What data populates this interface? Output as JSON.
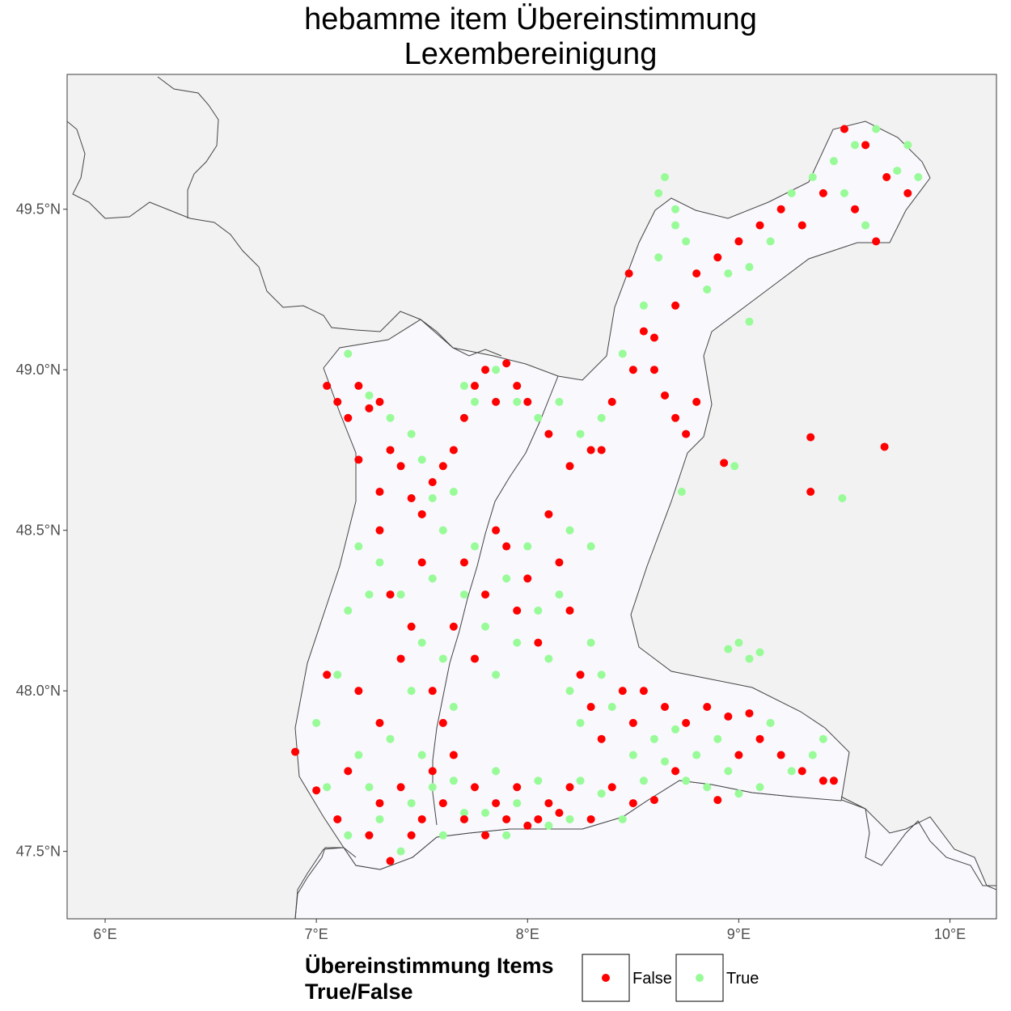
{
  "chart_data": {
    "type": "scatter",
    "title_line1": "hebamme item Übereinstimmung",
    "title_line2": "Lexembereinigung",
    "xlim": [
      5.82,
      10.22
    ],
    "ylim": [
      47.29,
      49.92
    ],
    "x_ticks": [
      6,
      7,
      8,
      9,
      10
    ],
    "x_tick_labels": [
      "6°E",
      "7°E",
      "8°E",
      "9°E",
      "10°E"
    ],
    "y_ticks": [
      47.5,
      48.0,
      48.5,
      49.0,
      49.5
    ],
    "y_tick_labels": [
      "47.5°N",
      "48.0°N",
      "48.5°N",
      "49.0°N",
      "49.5°N"
    ],
    "grid": false,
    "legend": {
      "title_line1": "Übereinstimmung Items",
      "title_line2": "True/False",
      "placement": "bottom",
      "entries": [
        {
          "label": "False",
          "color": "#ff0000"
        },
        {
          "label": "True",
          "color": "#98fb98"
        }
      ]
    },
    "colors": {
      "false": "#ff0000",
      "true": "#98fb98",
      "panel_background": "#f8f8fd",
      "land_outside": "#f2f2f2",
      "border_line": "#444444"
    },
    "series": [
      {
        "name": "False",
        "points": [
          [
            6.9,
            47.81
          ],
          [
            7.0,
            47.69
          ],
          [
            7.05,
            48.05
          ],
          [
            7.1,
            47.6
          ],
          [
            7.15,
            47.75
          ],
          [
            7.2,
            48.0
          ],
          [
            7.25,
            47.55
          ],
          [
            7.3,
            47.9
          ],
          [
            7.35,
            47.47
          ],
          [
            7.3,
            47.65
          ],
          [
            7.4,
            47.7
          ],
          [
            7.45,
            47.55
          ],
          [
            7.5,
            47.6
          ],
          [
            7.55,
            47.75
          ],
          [
            7.6,
            47.65
          ],
          [
            7.65,
            47.8
          ],
          [
            7.7,
            47.6
          ],
          [
            7.75,
            47.7
          ],
          [
            7.8,
            47.55
          ],
          [
            7.85,
            47.65
          ],
          [
            7.9,
            47.6
          ],
          [
            7.95,
            47.7
          ],
          [
            8.0,
            47.58
          ],
          [
            8.05,
            47.6
          ],
          [
            8.1,
            47.65
          ],
          [
            8.15,
            47.62
          ],
          [
            8.2,
            47.7
          ],
          [
            8.3,
            47.6
          ],
          [
            8.4,
            47.7
          ],
          [
            8.5,
            47.65
          ],
          [
            8.6,
            47.66
          ],
          [
            8.7,
            47.75
          ],
          [
            8.9,
            47.66
          ],
          [
            9.0,
            47.8
          ],
          [
            9.1,
            47.85
          ],
          [
            9.2,
            47.8
          ],
          [
            9.3,
            47.75
          ],
          [
            9.4,
            47.72
          ],
          [
            9.45,
            47.72
          ],
          [
            7.1,
            48.9
          ],
          [
            7.05,
            48.95
          ],
          [
            7.15,
            48.85
          ],
          [
            7.2,
            48.95
          ],
          [
            7.25,
            48.88
          ],
          [
            7.3,
            48.9
          ],
          [
            7.35,
            48.75
          ],
          [
            7.4,
            48.7
          ],
          [
            7.45,
            48.6
          ],
          [
            7.5,
            48.55
          ],
          [
            7.55,
            48.65
          ],
          [
            7.6,
            48.7
          ],
          [
            7.65,
            48.75
          ],
          [
            7.7,
            48.85
          ],
          [
            7.75,
            48.95
          ],
          [
            7.8,
            49.0
          ],
          [
            7.85,
            48.9
          ],
          [
            7.9,
            49.02
          ],
          [
            7.95,
            48.95
          ],
          [
            8.0,
            48.9
          ],
          [
            8.1,
            48.8
          ],
          [
            8.2,
            48.7
          ],
          [
            8.3,
            48.75
          ],
          [
            8.4,
            48.9
          ],
          [
            8.5,
            49.0
          ],
          [
            8.6,
            49.1
          ],
          [
            8.7,
            49.2
          ],
          [
            8.8,
            49.3
          ],
          [
            8.9,
            49.35
          ],
          [
            9.0,
            49.4
          ],
          [
            9.1,
            49.45
          ],
          [
            9.2,
            49.5
          ],
          [
            9.3,
            49.45
          ],
          [
            9.4,
            49.55
          ],
          [
            9.5,
            49.75
          ],
          [
            9.6,
            49.7
          ],
          [
            9.7,
            49.6
          ],
          [
            9.8,
            49.55
          ],
          [
            9.55,
            49.5
          ],
          [
            9.65,
            49.4
          ],
          [
            7.3,
            48.5
          ],
          [
            7.35,
            48.3
          ],
          [
            7.4,
            48.1
          ],
          [
            7.45,
            48.2
          ],
          [
            7.5,
            48.4
          ],
          [
            7.55,
            48.0
          ],
          [
            7.6,
            47.9
          ],
          [
            7.65,
            48.2
          ],
          [
            7.7,
            48.4
          ],
          [
            7.75,
            48.1
          ],
          [
            7.8,
            48.3
          ],
          [
            7.85,
            48.5
          ],
          [
            7.9,
            48.45
          ],
          [
            7.95,
            48.25
          ],
          [
            8.0,
            48.35
          ],
          [
            8.05,
            48.15
          ],
          [
            8.1,
            48.55
          ],
          [
            8.15,
            48.4
          ],
          [
            8.2,
            48.25
          ],
          [
            8.25,
            48.05
          ],
          [
            8.3,
            47.95
          ],
          [
            8.35,
            47.85
          ],
          [
            8.45,
            48.0
          ],
          [
            8.5,
            47.9
          ],
          [
            8.55,
            48.0
          ],
          [
            8.65,
            47.95
          ],
          [
            8.75,
            47.9
          ],
          [
            8.85,
            47.95
          ],
          [
            8.95,
            47.92
          ],
          [
            9.05,
            47.93
          ],
          [
            8.48,
            49.3
          ],
          [
            8.55,
            49.12
          ],
          [
            8.6,
            49.0
          ],
          [
            8.65,
            48.92
          ],
          [
            8.7,
            48.85
          ],
          [
            8.75,
            48.8
          ],
          [
            8.8,
            48.9
          ],
          [
            8.93,
            48.71
          ],
          [
            9.34,
            48.79
          ],
          [
            9.69,
            48.76
          ],
          [
            9.34,
            48.62
          ],
          [
            7.2,
            48.72
          ],
          [
            7.3,
            48.62
          ],
          [
            8.35,
            48.75
          ]
        ]
      },
      {
        "name": "True",
        "points": [
          [
            7.0,
            47.9
          ],
          [
            7.05,
            47.7
          ],
          [
            7.1,
            48.05
          ],
          [
            7.15,
            47.55
          ],
          [
            7.2,
            47.8
          ],
          [
            7.25,
            47.7
          ],
          [
            7.3,
            47.6
          ],
          [
            7.35,
            47.85
          ],
          [
            7.4,
            47.5
          ],
          [
            7.45,
            47.65
          ],
          [
            7.5,
            47.8
          ],
          [
            7.55,
            47.7
          ],
          [
            7.6,
            47.55
          ],
          [
            7.65,
            47.72
          ],
          [
            7.7,
            47.62
          ],
          [
            7.8,
            47.62
          ],
          [
            7.85,
            47.75
          ],
          [
            7.9,
            47.55
          ],
          [
            7.95,
            47.65
          ],
          [
            8.05,
            47.72
          ],
          [
            8.1,
            47.58
          ],
          [
            8.2,
            47.6
          ],
          [
            8.25,
            47.72
          ],
          [
            8.35,
            47.68
          ],
          [
            8.45,
            47.6
          ],
          [
            8.55,
            47.72
          ],
          [
            8.65,
            47.78
          ],
          [
            8.75,
            47.72
          ],
          [
            8.8,
            47.8
          ],
          [
            8.85,
            47.7
          ],
          [
            8.95,
            47.75
          ],
          [
            9.0,
            47.68
          ],
          [
            9.1,
            47.7
          ],
          [
            9.15,
            47.9
          ],
          [
            9.25,
            47.75
          ],
          [
            9.35,
            47.8
          ],
          [
            9.4,
            47.85
          ],
          [
            9.0,
            48.15
          ],
          [
            9.05,
            48.1
          ],
          [
            9.1,
            48.12
          ],
          [
            7.15,
            49.05
          ],
          [
            7.25,
            48.92
          ],
          [
            7.35,
            48.85
          ],
          [
            7.45,
            48.8
          ],
          [
            7.5,
            48.72
          ],
          [
            7.55,
            48.6
          ],
          [
            7.6,
            48.5
          ],
          [
            7.65,
            48.62
          ],
          [
            7.7,
            48.95
          ],
          [
            7.75,
            48.9
          ],
          [
            7.85,
            49.0
          ],
          [
            7.95,
            48.9
          ],
          [
            8.05,
            48.85
          ],
          [
            8.15,
            48.9
          ],
          [
            8.25,
            48.8
          ],
          [
            8.35,
            48.85
          ],
          [
            8.45,
            49.05
          ],
          [
            8.55,
            49.2
          ],
          [
            8.62,
            49.35
          ],
          [
            8.65,
            49.6
          ],
          [
            8.7,
            49.5
          ],
          [
            8.75,
            49.4
          ],
          [
            8.85,
            49.25
          ],
          [
            8.95,
            49.3
          ],
          [
            9.05,
            49.32
          ],
          [
            9.15,
            49.4
          ],
          [
            9.25,
            49.55
          ],
          [
            9.35,
            49.6
          ],
          [
            9.45,
            49.65
          ],
          [
            9.55,
            49.7
          ],
          [
            9.65,
            49.75
          ],
          [
            9.75,
            49.62
          ],
          [
            9.8,
            49.7
          ],
          [
            9.85,
            49.6
          ],
          [
            9.5,
            49.55
          ],
          [
            9.6,
            49.45
          ],
          [
            9.05,
            49.15
          ],
          [
            7.15,
            48.25
          ],
          [
            7.25,
            48.3
          ],
          [
            7.3,
            48.4
          ],
          [
            7.4,
            48.3
          ],
          [
            7.45,
            48.0
          ],
          [
            7.5,
            48.15
          ],
          [
            7.55,
            48.35
          ],
          [
            7.6,
            48.1
          ],
          [
            7.65,
            47.95
          ],
          [
            7.7,
            48.3
          ],
          [
            7.75,
            48.45
          ],
          [
            7.8,
            48.2
          ],
          [
            7.85,
            48.05
          ],
          [
            7.9,
            48.35
          ],
          [
            7.95,
            48.15
          ],
          [
            8.0,
            48.45
          ],
          [
            8.05,
            48.25
          ],
          [
            8.1,
            48.1
          ],
          [
            8.15,
            48.3
          ],
          [
            8.2,
            48.0
          ],
          [
            8.25,
            47.9
          ],
          [
            8.3,
            48.15
          ],
          [
            8.35,
            48.05
          ],
          [
            8.4,
            47.95
          ],
          [
            8.5,
            47.8
          ],
          [
            8.6,
            47.85
          ],
          [
            8.7,
            47.88
          ],
          [
            8.9,
            47.85
          ],
          [
            8.95,
            48.13
          ],
          [
            8.73,
            48.62
          ],
          [
            8.98,
            48.7
          ],
          [
            9.49,
            48.6
          ],
          [
            8.3,
            48.45
          ],
          [
            8.2,
            48.5
          ],
          [
            7.2,
            48.45
          ],
          [
            8.62,
            49.55
          ],
          [
            8.7,
            49.45
          ]
        ]
      }
    ]
  }
}
